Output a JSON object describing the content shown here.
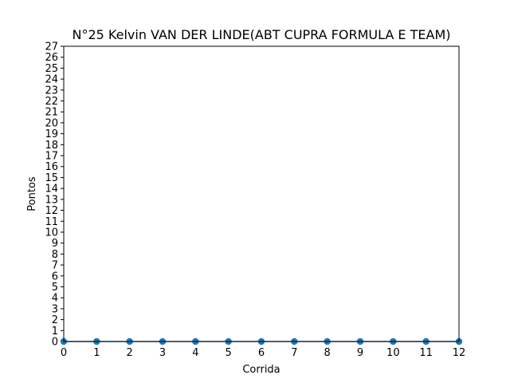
{
  "chart_data": {
    "type": "line",
    "title": "N°25 Kelvin VAN DER LINDE(ABT CUPRA FORMULA E TEAM)",
    "xlabel": "Corrida",
    "ylabel": "Pontos",
    "xlim": [
      0,
      12
    ],
    "ylim": [
      0,
      27
    ],
    "x_ticks": [
      0,
      1,
      2,
      3,
      4,
      5,
      6,
      7,
      8,
      9,
      10,
      11,
      12
    ],
    "y_ticks": [
      0,
      1,
      2,
      3,
      4,
      5,
      6,
      7,
      8,
      9,
      10,
      11,
      12,
      13,
      14,
      15,
      16,
      17,
      18,
      19,
      20,
      21,
      22,
      23,
      24,
      25,
      26,
      27
    ],
    "grid": false,
    "series": [
      {
        "color": "#1f77b4",
        "marker": "circle",
        "x": [
          0,
          1,
          2,
          3,
          4,
          5,
          6,
          7,
          8,
          9,
          10,
          11,
          12
        ],
        "y": [
          0,
          0,
          0,
          0,
          0,
          0,
          0,
          0,
          0,
          0,
          0,
          0,
          0
        ]
      }
    ]
  }
}
